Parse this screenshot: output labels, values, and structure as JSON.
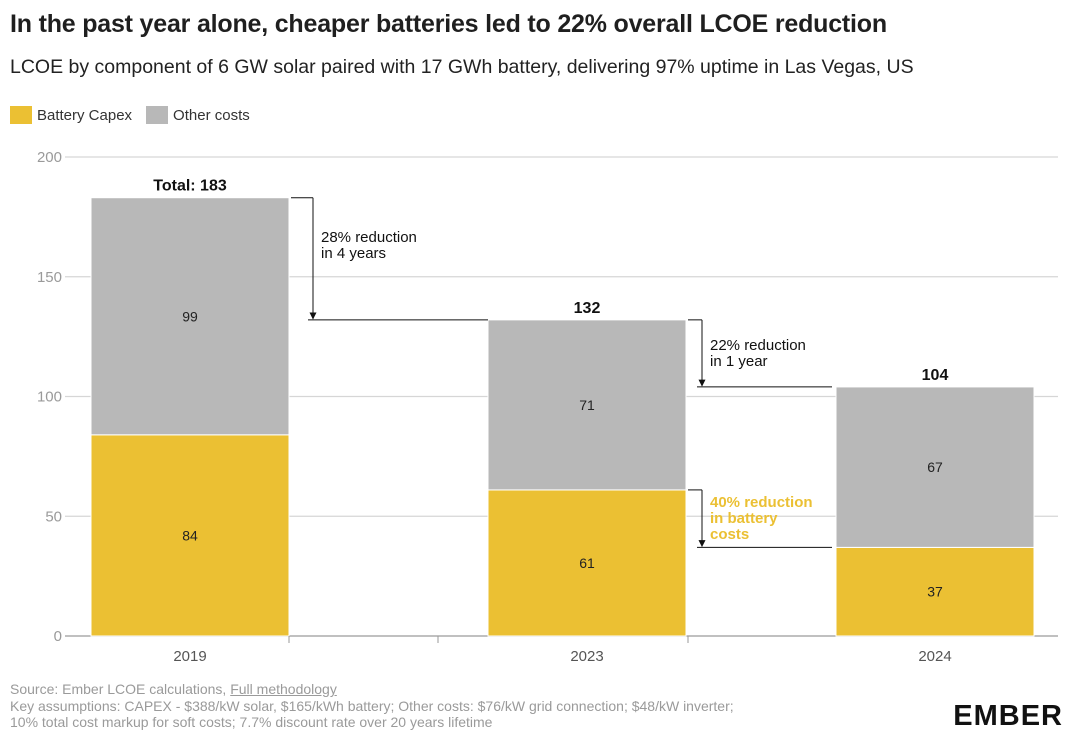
{
  "title": "In the past year alone, cheaper batteries led to 22% overall LCOE reduction",
  "subtitle": "LCOE by component of 6 GW solar paired with 17 GWh battery, delivering 97% uptime in Las Vegas, US",
  "legend": [
    {
      "label": "Battery Capex",
      "color": "#EBC033"
    },
    {
      "label": "Other costs",
      "color": "#B8B8B8"
    }
  ],
  "chart_data": {
    "type": "bar",
    "stacked": true,
    "categories": [
      "2019",
      "2023",
      "2024"
    ],
    "series": [
      {
        "name": "Battery Capex",
        "values": [
          84,
          61,
          37
        ],
        "color": "#EBC033"
      },
      {
        "name": "Other costs",
        "values": [
          99,
          71,
          67
        ],
        "color": "#B8B8B8"
      }
    ],
    "totals": [
      "Total: 183",
      "132",
      "104"
    ],
    "ylim": [
      0,
      200
    ],
    "yticks": [
      0,
      50,
      100,
      150,
      200
    ],
    "grid": true,
    "legend_position": "top-left",
    "annotations": [
      {
        "text": [
          "28% reduction",
          "in 4 years"
        ],
        "from": 183,
        "to": 132,
        "color": "#111111"
      },
      {
        "text": [
          "22% reduction",
          "in 1 year"
        ],
        "from": 132,
        "to": 104,
        "color": "#111111"
      },
      {
        "text": [
          "40% reduction",
          "in battery",
          "costs"
        ],
        "from": 61,
        "to": 37,
        "color": "#EBC033"
      }
    ]
  },
  "footer": {
    "source_prefix": "Source: Ember LCOE calculations, ",
    "source_link": "Full methodology",
    "line2": "Key assumptions: CAPEX - $388/kW solar, $165/kWh battery; Other costs: $76/kW grid connection; $48/kW inverter;",
    "line3": "10% total cost markup for soft costs; 7.7% discount rate over 20 years lifetime"
  },
  "logo": "EMBER"
}
